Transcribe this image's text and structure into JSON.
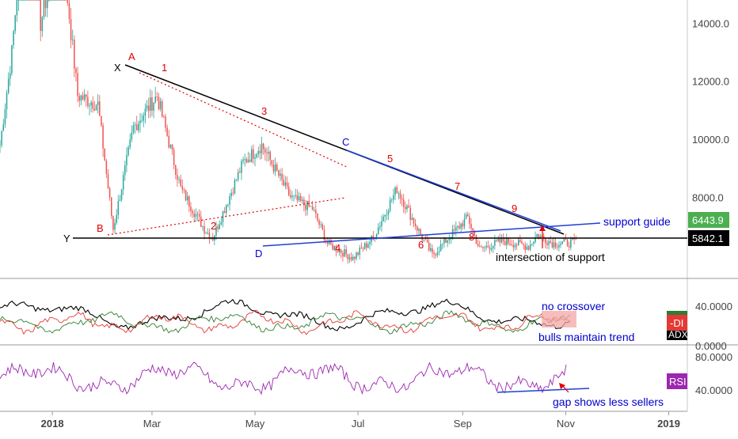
{
  "chart_data": {
    "type": "candlestick",
    "price_axis": {
      "ylim": [
        5200,
        14800
      ],
      "ticks": [
        "14000.0",
        "12000.0",
        "10000.0",
        "8000.0"
      ]
    },
    "time_axis": {
      "labels": [
        "2018",
        "Mar",
        "May",
        "Jul",
        "Sep",
        "Nov",
        "2019"
      ]
    },
    "price_series": [
      [
        "2017-12-01",
        9800
      ],
      [
        "2017-12-08",
        13000
      ],
      [
        "2017-12-17",
        19000
      ],
      [
        "2017-12-25",
        14000
      ],
      [
        "2018-01-06",
        17000
      ],
      [
        "2018-01-16",
        11500
      ],
      [
        "2018-01-28",
        11200
      ],
      [
        "2018-02-06",
        6900
      ],
      [
        "2018-02-18",
        10400
      ],
      [
        "2018-03-04",
        11500
      ],
      [
        "2018-03-18",
        8300
      ],
      [
        "2018-04-01",
        6900
      ],
      [
        "2018-04-06",
        6600
      ],
      [
        "2018-04-24",
        9200
      ],
      [
        "2018-05-05",
        9800
      ],
      [
        "2018-05-22",
        8000
      ],
      [
        "2018-06-04",
        7600
      ],
      [
        "2018-06-13",
        6400
      ],
      [
        "2018-06-28",
        5900
      ],
      [
        "2018-07-10",
        6600
      ],
      [
        "2018-07-24",
        8300
      ],
      [
        "2018-08-08",
        6600
      ],
      [
        "2018-08-14",
        6000
      ],
      [
        "2018-08-30",
        7000
      ],
      [
        "2018-09-04",
        7300
      ],
      [
        "2018-09-11",
        6200
      ],
      [
        "2018-09-25",
        6500
      ],
      [
        "2018-10-10",
        6300
      ],
      [
        "2018-10-15",
        6700
      ],
      [
        "2018-10-25",
        6400
      ],
      [
        "2018-11-07",
        6444
      ]
    ],
    "last_price": "6443.9",
    "support_level": "5842.1",
    "adx_panel": {
      "ticks": [
        "40.0000",
        "0.0000"
      ],
      "label_di": "-DI",
      "label_adx": "ADX"
    },
    "rsi_panel": {
      "ticks": [
        "80.0000",
        "40.0000"
      ],
      "label": "RSI"
    },
    "annotations": {
      "letters": [
        "A",
        "B",
        "C",
        "D",
        "X",
        "Y"
      ],
      "numbers": [
        "1",
        "2",
        "3",
        "4",
        "5",
        "6",
        "7",
        "8",
        "9"
      ],
      "support_guide": "support guide",
      "intersection": "intersection of support",
      "no_crossover": "no crossover",
      "bulls": "bulls maintain trend",
      "gap": "gap shows less sellers"
    },
    "colors": {
      "up": "#26a69a",
      "down": "#ef5350",
      "adx": "#000000",
      "plus_di": "#2e7d32",
      "minus_di": "#e53935",
      "rsi": "#9c27b0",
      "annotation_red": "#e00000",
      "annotation_blue": "#0000cc",
      "last_price_badge": "#4caf50",
      "rsi_badge": "#9c27b0",
      "di_badge": "#e53935"
    }
  }
}
